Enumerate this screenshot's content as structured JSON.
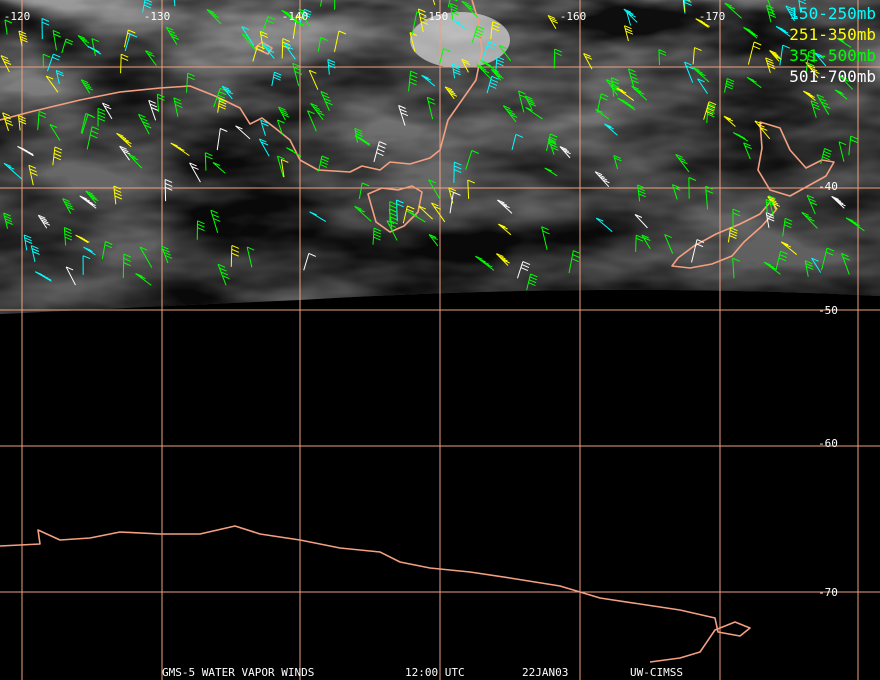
{
  "map": {
    "lon_labels": [
      "-120",
      "-130",
      "-140",
      "-150",
      "-160",
      "-170"
    ],
    "lat_labels": [
      "-40",
      "-50",
      "-60",
      "-70"
    ],
    "legend": [
      {
        "label": "150-250mb",
        "color": "#00ffff"
      },
      {
        "label": "251-350mb",
        "color": "#ffff00"
      },
      {
        "label": "351-500mb",
        "color": "#00ff00"
      },
      {
        "label": "501-700mb",
        "color": "#ffffff"
      }
    ],
    "footer": [
      "GMS-5 WATER VAPOR WINDS",
      "12:00 UTC",
      "22JAN03",
      "UW-CIMSS"
    ]
  }
}
